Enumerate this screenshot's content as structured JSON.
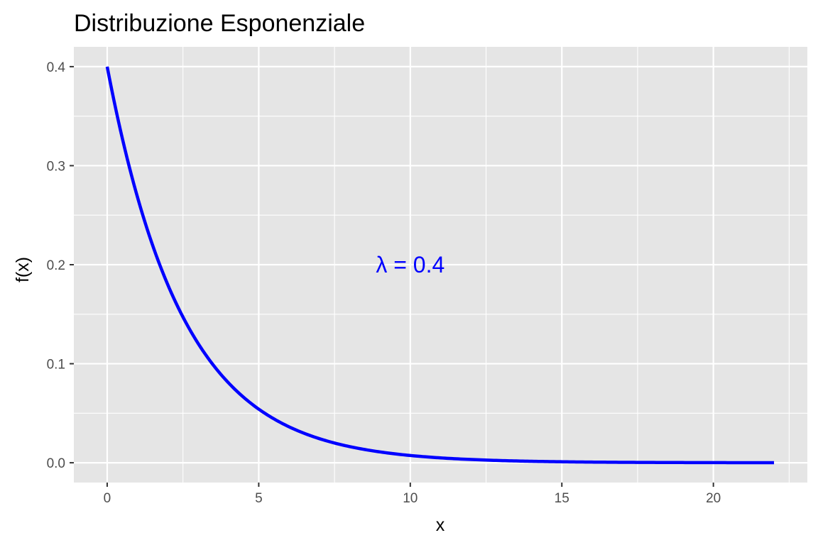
{
  "chart_data": {
    "type": "line",
    "title": "Distribuzione Esponenziale",
    "xlabel": "x",
    "ylabel": "f(x)",
    "xlim": [
      -1.1,
      23.1
    ],
    "ylim": [
      -0.02,
      0.42
    ],
    "x_ticks": [
      0,
      5,
      10,
      15,
      20
    ],
    "x_tick_labels": [
      "0",
      "5",
      "10",
      "15",
      "20"
    ],
    "x_minor_ticks": [
      2.5,
      7.5,
      12.5,
      17.5,
      22.5
    ],
    "y_ticks": [
      0.0,
      0.1,
      0.2,
      0.3,
      0.4
    ],
    "y_tick_labels": [
      "0.0",
      "0.1",
      "0.2",
      "0.3",
      "0.4"
    ],
    "y_minor_ticks": [
      0.05,
      0.15,
      0.25,
      0.35
    ],
    "grid": true,
    "background": "#e5e5e5",
    "grid_color": "#ffffff",
    "series": [
      {
        "color": "#0000ff",
        "x": [
          0,
          0.5,
          1,
          1.5,
          2,
          2.5,
          3,
          3.5,
          4,
          4.5,
          5,
          6,
          7,
          8,
          9,
          10,
          11,
          12,
          13,
          14,
          15,
          16,
          17,
          18,
          19,
          20,
          21,
          22
        ],
        "y": [
          0.4,
          0.3275,
          0.2681,
          0.2195,
          0.1797,
          0.1472,
          0.1205,
          0.0986,
          0.0808,
          0.0661,
          0.0541,
          0.0363,
          0.0243,
          0.0163,
          0.0109,
          0.0073,
          0.0049,
          0.0033,
          0.0022,
          0.0015,
          0.001,
          0.0007,
          0.0004,
          0.0003,
          0.0002,
          0.0001,
          0.0001,
          0.0001
        ]
      }
    ],
    "annotations": [
      {
        "text": "λ = 0.4",
        "x": 10,
        "y": 0.2,
        "color": "#0000ff"
      }
    ]
  }
}
